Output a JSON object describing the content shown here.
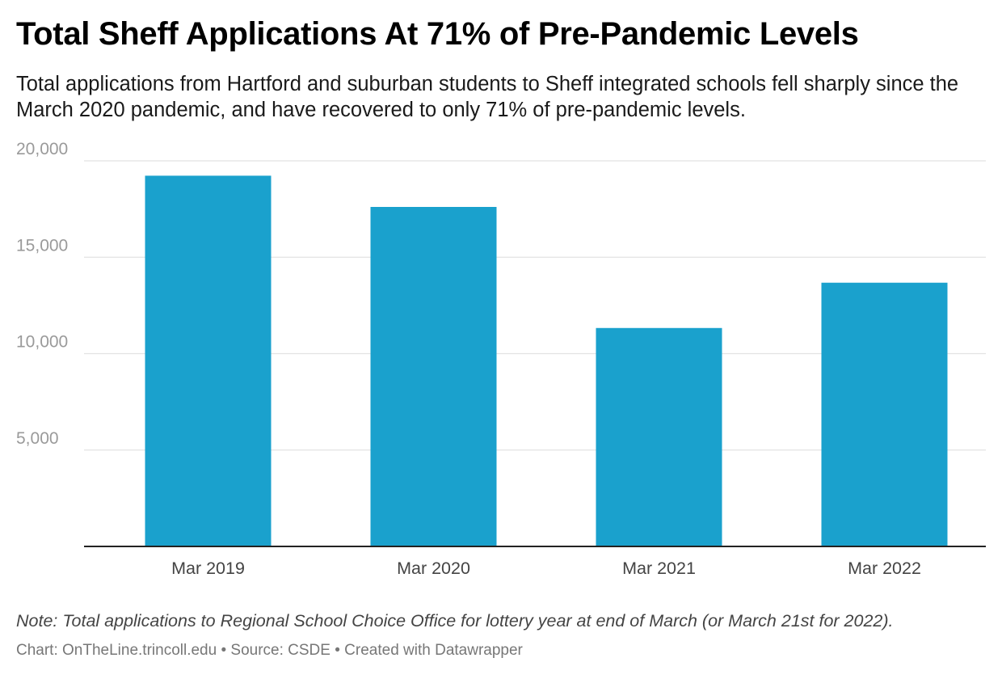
{
  "chart_data": {
    "type": "bar",
    "title": "Total Sheff Applications At 71% of Pre-Pandemic Levels",
    "subtitle": "Total applications from Hartford and suburban students to Sheff integrated schools fell sharply since the March 2020 pandemic, and have recovered to only 71% of pre-pandemic levels.",
    "categories": [
      "Mar 2019",
      "Mar 2020",
      "Mar 2021",
      "Mar 2022"
    ],
    "values": [
      19230,
      17610,
      11330,
      13680
    ],
    "ylim": [
      0,
      20000
    ],
    "yticks": [
      5000,
      10000,
      15000,
      20000
    ],
    "ytick_labels": [
      "5,000",
      "10,000",
      "15,000",
      "20,000"
    ],
    "grid": true,
    "bar_color": "#1aa1cd"
  },
  "note": "Note: Total applications to Regional School Choice Office for lottery year at end of March (or March 21st for 2022).",
  "footer": {
    "chart_credit": "Chart: OnTheLine.trincoll.edu",
    "source": "Source: CSDE",
    "created_with": "Created with Datawrapper",
    "separator": "•"
  }
}
